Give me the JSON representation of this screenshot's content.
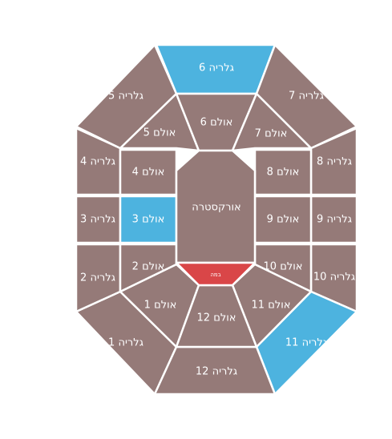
{
  "colors": {
    "background": "#ffffff",
    "section_default": "#957a78",
    "section_selected": "#4db3df",
    "stage": "#d94648",
    "border": "#ffffff",
    "label": "#ffffff"
  },
  "stage": {
    "label": "במה"
  },
  "orchestra": {
    "label": "אורקסטרה"
  },
  "halls": [
    {
      "id": "1",
      "label": "אולם 1",
      "selected": false
    },
    {
      "id": "2",
      "label": "אולם 2",
      "selected": false
    },
    {
      "id": "3",
      "label": "אולם 3",
      "selected": true
    },
    {
      "id": "4",
      "label": "אולם 4",
      "selected": false
    },
    {
      "id": "5",
      "label": "אולם 5",
      "selected": false
    },
    {
      "id": "6",
      "label": "אולם 6",
      "selected": false
    },
    {
      "id": "7",
      "label": "אולם 7",
      "selected": false
    },
    {
      "id": "8",
      "label": "אולם 8",
      "selected": false
    },
    {
      "id": "9",
      "label": "אולם 9",
      "selected": false
    },
    {
      "id": "10",
      "label": "אולם 10",
      "selected": false
    },
    {
      "id": "11",
      "label": "אולם 11",
      "selected": false
    },
    {
      "id": "12",
      "label": "אולם 12",
      "selected": false
    }
  ],
  "galleries": [
    {
      "id": "1",
      "label": "גלריה 1",
      "selected": false
    },
    {
      "id": "2",
      "label": "גלריה 2",
      "selected": false
    },
    {
      "id": "3",
      "label": "גלריה 3",
      "selected": false
    },
    {
      "id": "4",
      "label": "גלריה 4",
      "selected": false
    },
    {
      "id": "5",
      "label": "גלריה 5",
      "selected": false
    },
    {
      "id": "6",
      "label": "גלריה 6",
      "selected": true
    },
    {
      "id": "7",
      "label": "גלריה 7",
      "selected": false
    },
    {
      "id": "8",
      "label": "גלריה 8",
      "selected": false
    },
    {
      "id": "9",
      "label": "גלריה 9",
      "selected": false
    },
    {
      "id": "10",
      "label": "גלריה 10",
      "selected": false
    },
    {
      "id": "11",
      "label": "גלריה 11",
      "selected": true
    },
    {
      "id": "12",
      "label": "גלריה 12",
      "selected": false
    }
  ]
}
